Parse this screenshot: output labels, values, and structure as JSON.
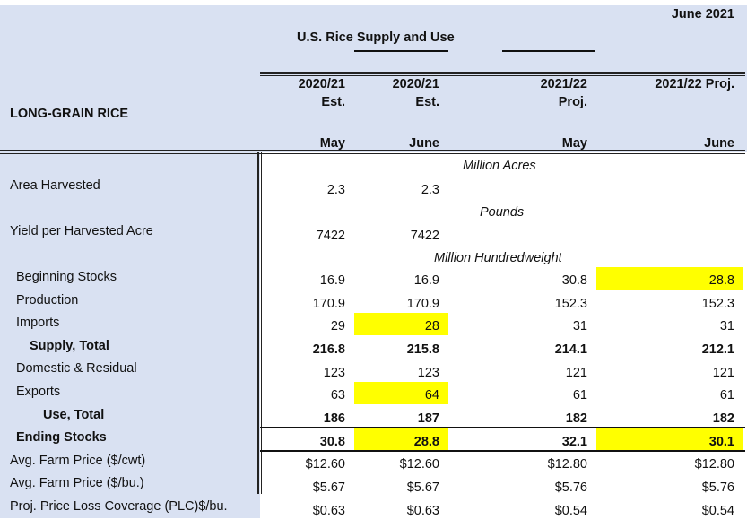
{
  "report": {
    "date": "June 2021",
    "title": "U.S. Rice Supply and Use",
    "section": "LONG-GRAIN RICE"
  },
  "columns": [
    {
      "year": "2020/21",
      "type": "Est.",
      "month": "May"
    },
    {
      "year": "2020/21",
      "type": "Est.",
      "month": "June"
    },
    {
      "year": "2021/22",
      "type": "Proj.",
      "month": "May"
    },
    {
      "year": "2021/22 Proj.",
      "type": "",
      "month": "June"
    }
  ],
  "units": {
    "acres": "Million Acres",
    "pounds": "Pounds",
    "cwt": "Million Hundredweight"
  },
  "rows": [
    {
      "label": "Area Harvested",
      "values": [
        "2.3",
        "2.3",
        "",
        ""
      ],
      "highlight": [
        false,
        false,
        false,
        false
      ]
    },
    {
      "label": "Yield per Harvested Acre",
      "values": [
        "7422",
        "7422",
        "",
        ""
      ],
      "highlight": [
        false,
        false,
        false,
        false
      ]
    },
    {
      "label": "Beginning Stocks",
      "values": [
        "16.9",
        "16.9",
        "30.8",
        "28.8"
      ],
      "highlight": [
        false,
        false,
        false,
        true
      ]
    },
    {
      "label": "Production",
      "values": [
        "170.9",
        "170.9",
        "152.3",
        "152.3"
      ],
      "highlight": [
        false,
        false,
        false,
        false
      ]
    },
    {
      "label": "Imports",
      "values": [
        "29",
        "28",
        "31",
        "31"
      ],
      "highlight": [
        false,
        true,
        false,
        false
      ]
    },
    {
      "label": "Supply, Total",
      "values": [
        "216.8",
        "215.8",
        "214.1",
        "212.1"
      ],
      "highlight": [
        false,
        false,
        false,
        false
      ]
    },
    {
      "label": "Domestic & Residual",
      "values": [
        "123",
        "123",
        "121",
        "121"
      ],
      "highlight": [
        false,
        false,
        false,
        false
      ]
    },
    {
      "label": "Exports",
      "values": [
        "63",
        "64",
        "61",
        "61"
      ],
      "highlight": [
        false,
        true,
        false,
        false
      ]
    },
    {
      "label": "Use, Total",
      "values": [
        "186",
        "187",
        "182",
        "182"
      ],
      "highlight": [
        false,
        false,
        false,
        false
      ]
    },
    {
      "label": "Ending Stocks",
      "values": [
        "30.8",
        "28.8",
        "32.1",
        "30.1"
      ],
      "highlight": [
        false,
        true,
        false,
        true
      ]
    },
    {
      "label": "Avg. Farm Price ($/cwt)",
      "values": [
        "$12.60",
        "$12.60",
        "$12.80",
        "$12.80"
      ],
      "highlight": [
        false,
        false,
        false,
        false
      ]
    },
    {
      "label": "Avg. Farm Price ($/bu.)",
      "values": [
        "$5.67",
        "$5.67",
        "$5.76",
        "$5.76"
      ],
      "highlight": [
        false,
        false,
        false,
        false
      ]
    },
    {
      "label": "Proj. Price Loss Coverage (PLC)$/bu.",
      "values": [
        "$0.63",
        "$0.63",
        "$0.54",
        "$0.54"
      ],
      "highlight": [
        false,
        false,
        false,
        false
      ]
    }
  ],
  "colors": {
    "header_bg": "#d9e1f2",
    "highlight": "#ffff00"
  }
}
